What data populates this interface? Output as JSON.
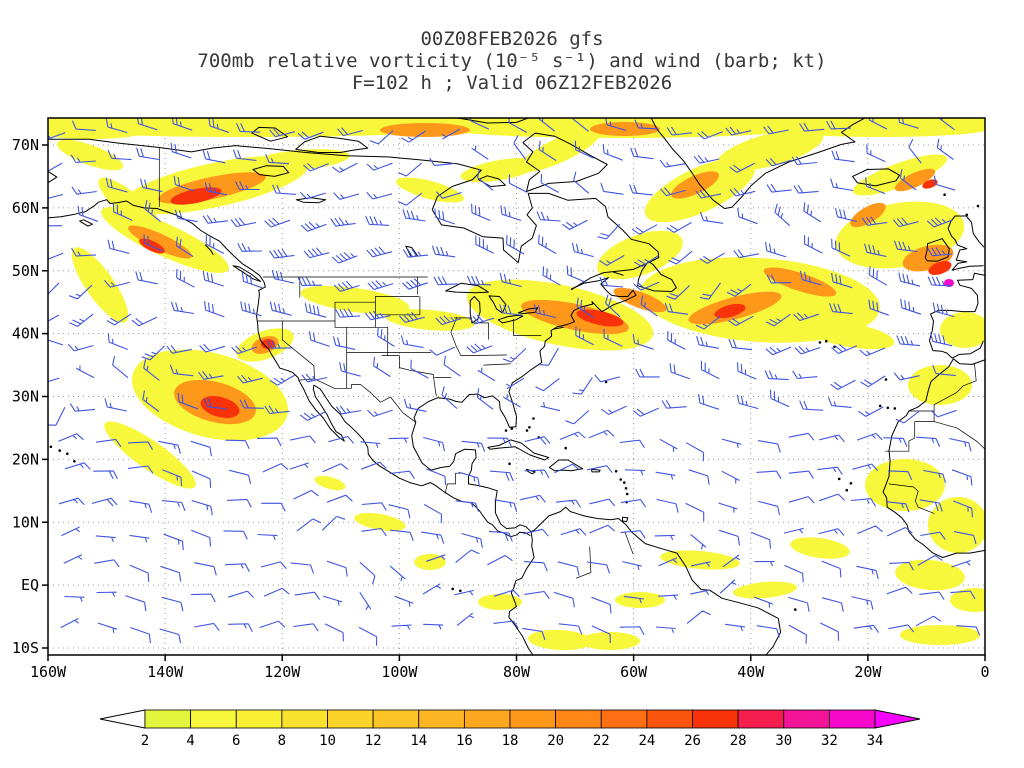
{
  "title": {
    "line1": "00Z08FEB2026 gfs",
    "line2": "700mb relative vorticity (10⁻⁵ s⁻¹) and wind (barb; kt)",
    "line3": "F=102 h ; Valid 06Z12FEB2026"
  },
  "chart_data": {
    "type": "heatmap",
    "title": "00Z08FEB2026 gfs",
    "field": "700mb relative vorticity (10⁻⁵ s⁻¹) and wind (barb; kt)",
    "valid": "F=102 h ; Valid 06Z12FEB2026",
    "model": "gfs",
    "level": "700mb",
    "forecast_hour": 102,
    "x_axis": {
      "tick_degrees": [
        -160,
        -140,
        -120,
        -100,
        -80,
        -60,
        -40,
        -20,
        0
      ],
      "tick_labels": [
        "160W",
        "140W",
        "120W",
        "100W",
        "80W",
        "60W",
        "40W",
        "20W",
        "0"
      ],
      "range_deg": [
        -160,
        0
      ]
    },
    "y_axis": {
      "tick_degrees": [
        70,
        60,
        50,
        40,
        30,
        20,
        10,
        0,
        -10
      ],
      "tick_labels": [
        "70N",
        "60N",
        "50N",
        "40N",
        "30N",
        "20N",
        "10N",
        "EQ",
        "10S"
      ],
      "range_deg": [
        -11.1,
        74.3
      ]
    },
    "colorbar": {
      "levels": [
        2,
        4,
        6,
        8,
        10,
        12,
        14,
        16,
        18,
        20,
        22,
        24,
        26,
        28,
        30,
        32,
        34
      ],
      "colors": [
        "#e3f63e",
        "#f7f73b",
        "#f9ef33",
        "#fae12e",
        "#fbd32a",
        "#fcc527",
        "#fdb623",
        "#fda71f",
        "#fd981b",
        "#fd8617",
        "#fc7013",
        "#fa540e",
        "#f8330a",
        "#f51e4e",
        "#f31398",
        "#f607c9"
      ],
      "under_color": "#ffffff",
      "over_color": "#fb00ff",
      "units": "10⁻⁵ s⁻¹"
    },
    "wind_barb_color": "#4055df",
    "coastline_color": "#000000",
    "gridline_color": "#999999",
    "grid": "dotted",
    "legend_position": "bottom"
  }
}
